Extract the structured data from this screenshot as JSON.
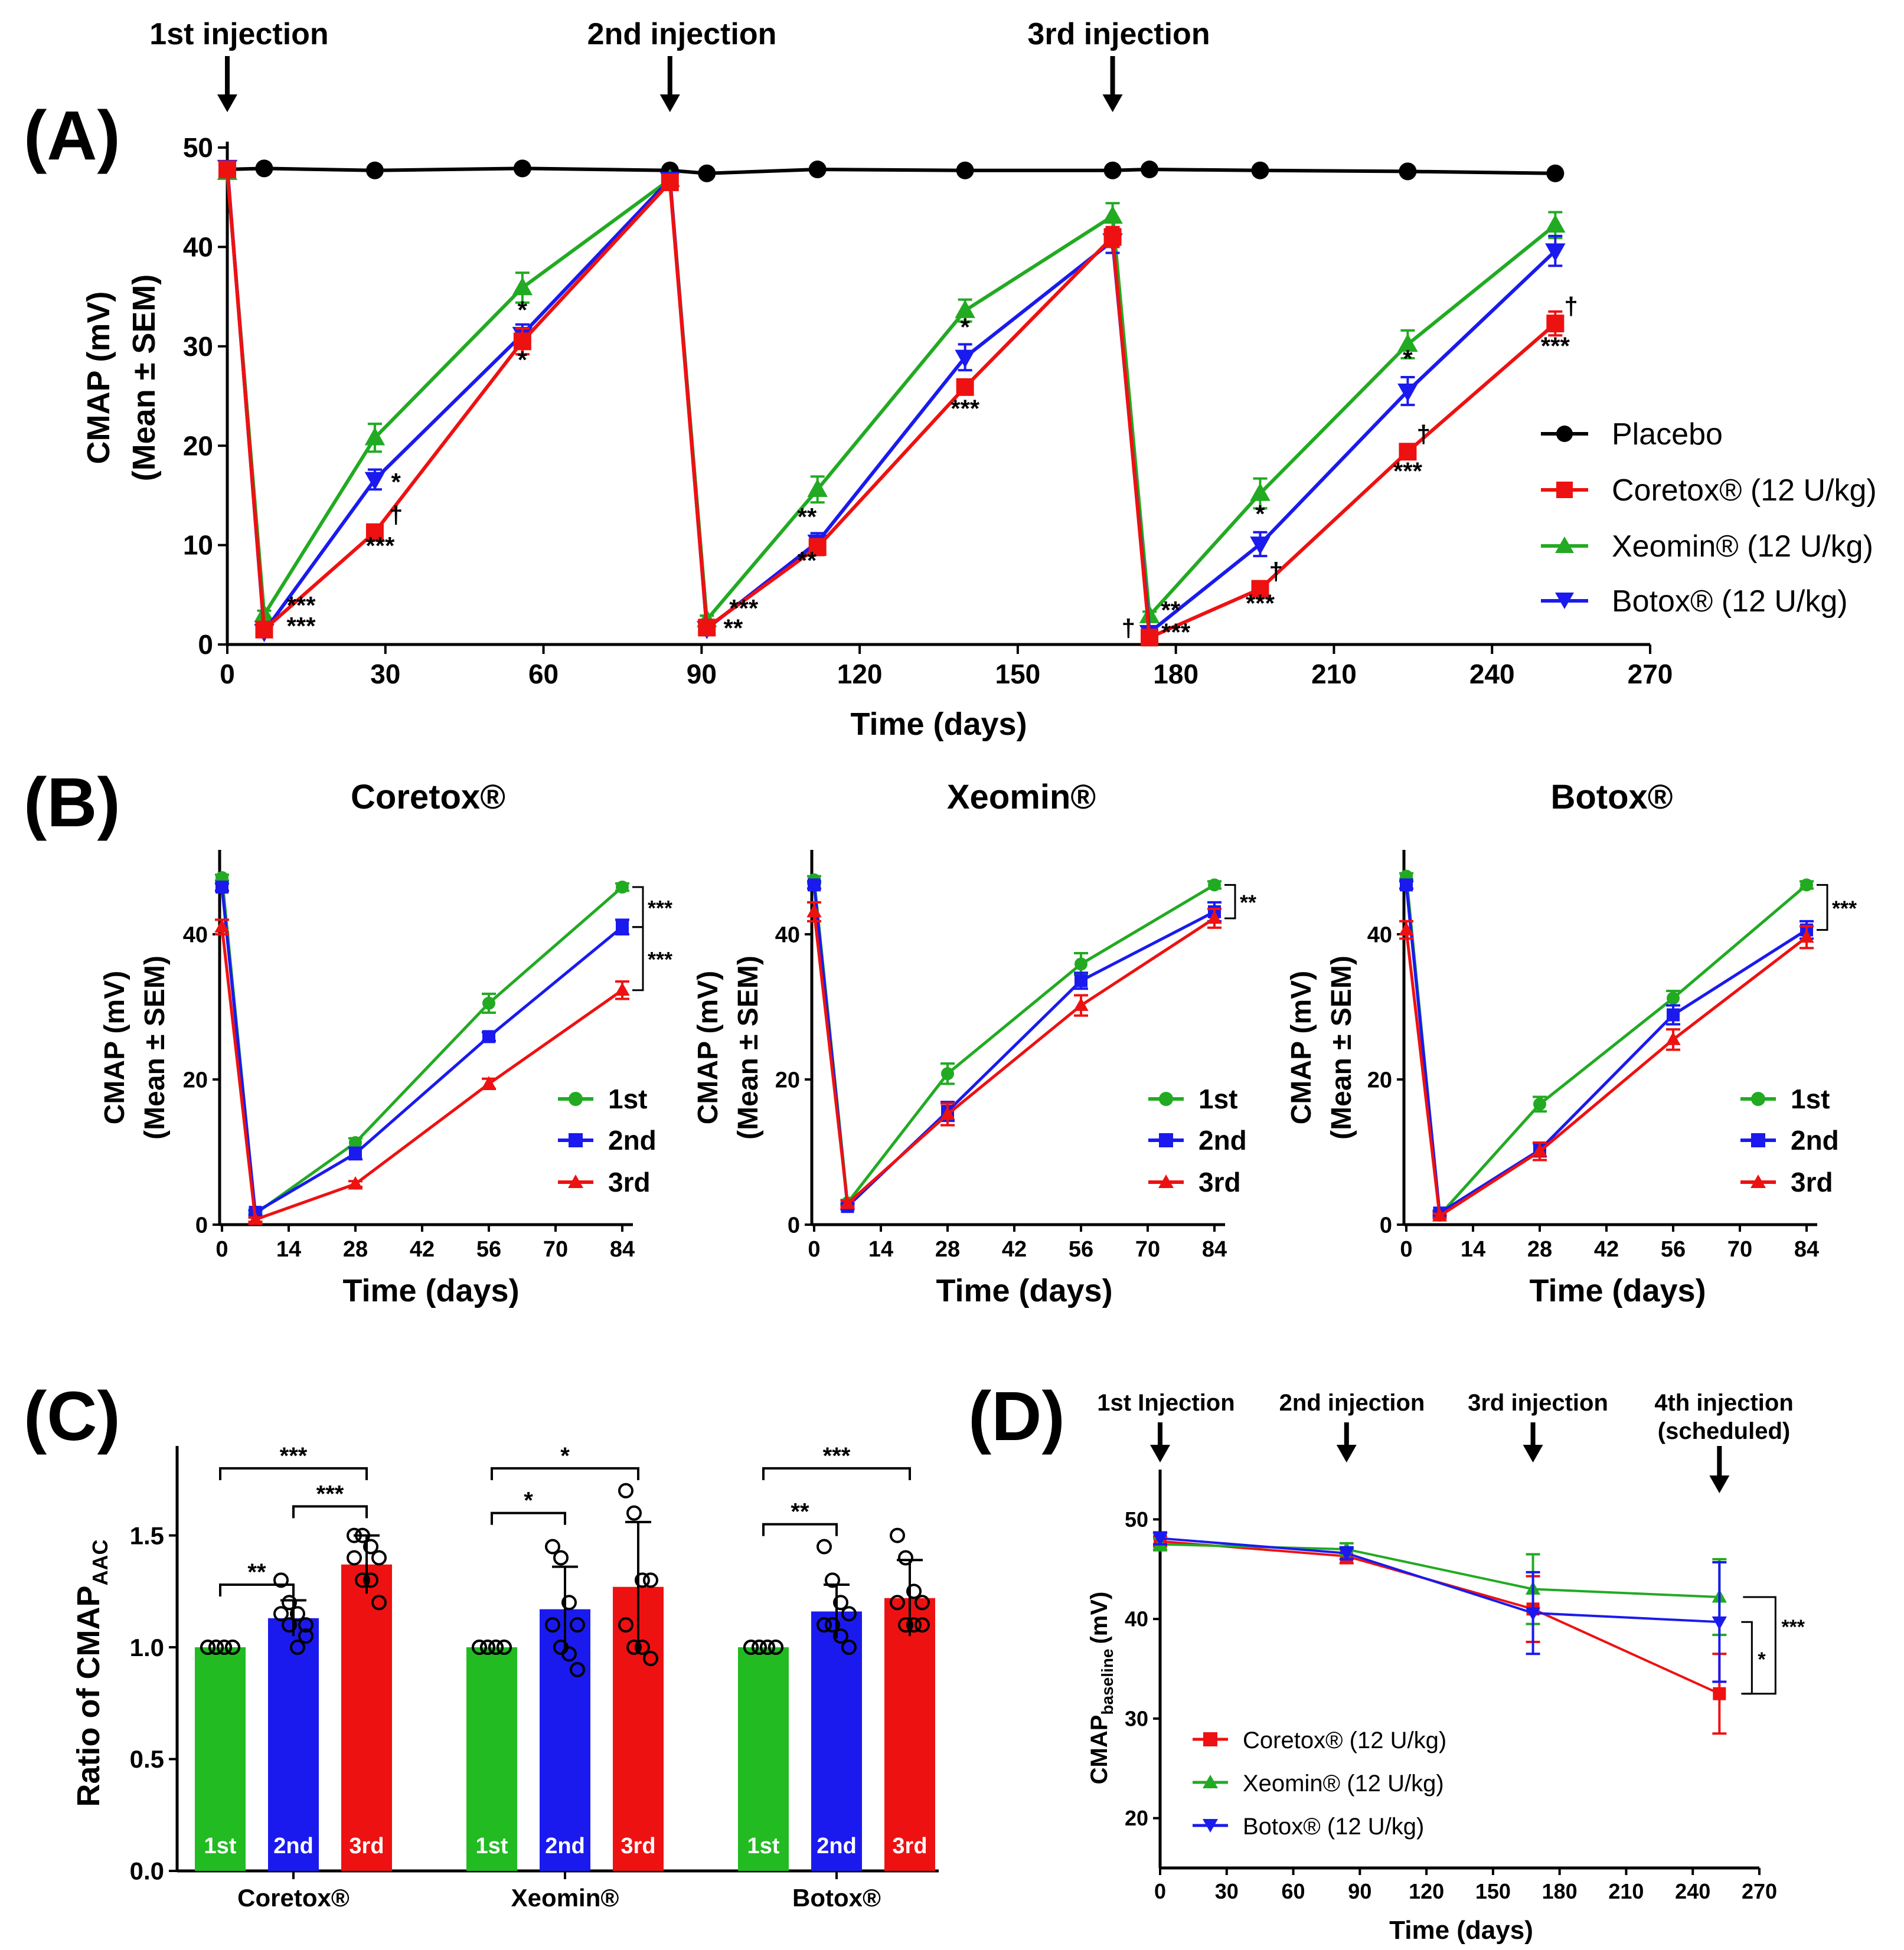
{
  "chart_data": [
    {
      "panel": "(A)",
      "type": "line",
      "xlabel": "Time (days)",
      "ylabel_line1": "CMAP (mV)",
      "ylabel_line2": "(Mean ± SEM)",
      "xlim": [
        0,
        270
      ],
      "ylim": [
        0,
        50
      ],
      "xticks": [
        0,
        30,
        60,
        90,
        120,
        150,
        180,
        210,
        240,
        270
      ],
      "yticks": [
        0,
        10,
        20,
        30,
        40,
        50
      ],
      "annotations": [
        "1st injection",
        "2nd injection",
        "3rd injection"
      ],
      "annotation_days": [
        0,
        84,
        168
      ],
      "series": [
        {
          "name": "Placebo",
          "color": "#000000",
          "marker": "circle",
          "x": [
            0,
            7,
            28,
            56,
            84,
            91,
            112,
            140,
            168,
            175,
            196,
            224,
            252
          ],
          "values": [
            47.8,
            47.9,
            47.7,
            47.9,
            47.7,
            47.4,
            47.8,
            47.7,
            47.7,
            47.8,
            47.7,
            47.6,
            47.4
          ],
          "err": [
            0.3,
            0.3,
            0.3,
            0.3,
            0.3,
            0.3,
            0.3,
            0.3,
            0.3,
            0.3,
            0.3,
            0.3,
            0.3
          ]
        },
        {
          "name": "Xeomin® (12 U/kg)",
          "color": "#22aa22",
          "marker": "triangle",
          "x": [
            0,
            7,
            28,
            56,
            84,
            91,
            112,
            140,
            168,
            175,
            196,
            224,
            252
          ],
          "values": [
            47.5,
            3.0,
            20.8,
            35.9,
            46.8,
            2.5,
            15.6,
            33.6,
            43.1,
            2.9,
            15.2,
            30.2,
            42.2
          ],
          "err": [
            0.5,
            0.4,
            1.4,
            1.5,
            0.5,
            0.4,
            1.3,
            1.1,
            1.3,
            0.4,
            1.5,
            1.4,
            1.3
          ]
        },
        {
          "name": "Botox® (12 U/kg)",
          "color": "#1a1aee",
          "marker": "triangle-down",
          "x": [
            0,
            7,
            28,
            56,
            84,
            91,
            112,
            140,
            168,
            175,
            196,
            224,
            252
          ],
          "values": [
            48.0,
            1.3,
            16.6,
            31.2,
            46.8,
            1.6,
            10.3,
            28.9,
            40.6,
            1.2,
            10.1,
            25.5,
            39.6
          ],
          "err": [
            0.4,
            0.3,
            1.0,
            1.0,
            0.5,
            0.3,
            0.9,
            1.3,
            1.2,
            0.3,
            1.2,
            1.4,
            1.5
          ]
        },
        {
          "name": "Coretox® (12 U/kg)",
          "color": "#ee1111",
          "marker": "square",
          "x": [
            0,
            7,
            28,
            56,
            84,
            91,
            112,
            140,
            168,
            175,
            196,
            224,
            252
          ],
          "values": [
            47.8,
            1.5,
            11.3,
            30.5,
            46.5,
            1.7,
            9.8,
            25.9,
            41.0,
            0.7,
            5.6,
            19.4,
            32.3
          ],
          "err": [
            0.4,
            0.3,
            0.6,
            1.3,
            0.5,
            0.3,
            0.8,
            0.6,
            1.0,
            0.3,
            0.4,
            0.7,
            1.2
          ]
        }
      ],
      "significance": [
        {
          "text": "***",
          "x": 14,
          "y": 3.1
        },
        {
          "text": "***",
          "x": 14,
          "y": 1.0
        },
        {
          "text": "*",
          "x": 32,
          "y": 15.5
        },
        {
          "text": "†",
          "x": 32,
          "y": 12.2
        },
        {
          "text": "***",
          "x": 29,
          "y": 9.1
        },
        {
          "text": "*",
          "x": 56,
          "y": 32.8
        },
        {
          "text": "*",
          "x": 56,
          "y": 27.8
        },
        {
          "text": "***",
          "x": 98,
          "y": 2.8
        },
        {
          "text": "**",
          "x": 96,
          "y": 0.8
        },
        {
          "text": "**",
          "x": 110,
          "y": 12.0
        },
        {
          "text": "**",
          "x": 110,
          "y": 7.6
        },
        {
          "text": "*",
          "x": 140,
          "y": 31.1
        },
        {
          "text": "***",
          "x": 140,
          "y": 22.9
        },
        {
          "text": "**",
          "x": 179,
          "y": 2.6
        },
        {
          "text": "†",
          "x": 171,
          "y": 0.8
        },
        {
          "text": "***",
          "x": 180,
          "y": 0.4
        },
        {
          "text": "*",
          "x": 196,
          "y": 12.3
        },
        {
          "text": "†",
          "x": 199,
          "y": 6.5
        },
        {
          "text": "***",
          "x": 196,
          "y": 3.3
        },
        {
          "text": "*",
          "x": 224,
          "y": 27.9
        },
        {
          "text": "†",
          "x": 227,
          "y": 20.3
        },
        {
          "text": "***",
          "x": 224,
          "y": 16.6
        },
        {
          "text": "†",
          "x": 255,
          "y": 33.2
        },
        {
          "text": "***",
          "x": 252,
          "y": 29.2
        }
      ]
    },
    {
      "panel": "(B)",
      "type": "line",
      "xlabel": "Time (days)",
      "ylabel_line1": "CMAP (mV)",
      "ylabel_line2": "(Mean ± SEM)",
      "xlim": [
        0,
        84
      ],
      "ylim": [
        0,
        50
      ],
      "xticks": [
        0,
        14,
        28,
        42,
        56,
        70,
        84
      ],
      "yticks": [
        0,
        20,
        40
      ],
      "subplots": [
        {
          "title": "Coretox®",
          "x": [
            0,
            7,
            28,
            56,
            84
          ],
          "series": [
            {
              "name": "1st",
              "color": "#22aa22",
              "marker": "circle",
              "values": [
                47.8,
                1.5,
                11.3,
                30.5,
                46.5
              ],
              "err": [
                0.4,
                0.3,
                0.6,
                1.3,
                0.5
              ]
            },
            {
              "name": "2nd",
              "color": "#1a1aee",
              "marker": "square",
              "values": [
                46.5,
                1.7,
                9.8,
                25.9,
                41.0
              ],
              "err": [
                0.5,
                0.3,
                0.8,
                0.6,
                1.0
              ]
            },
            {
              "name": "3rd",
              "color": "#ee1111",
              "marker": "triangle",
              "values": [
                41.0,
                0.7,
                5.6,
                19.4,
                32.3
              ],
              "err": [
                1.0,
                0.3,
                0.4,
                0.7,
                1.2
              ]
            }
          ],
          "sig_brackets": [
            {
              "text": "***",
              "y1": 46.5,
              "y2": 41.0
            },
            {
              "text": "***",
              "y1": 41.0,
              "y2": 32.3
            }
          ]
        },
        {
          "title": "Xeomin®",
          "x": [
            0,
            7,
            28,
            56,
            84
          ],
          "series": [
            {
              "name": "1st",
              "color": "#22aa22",
              "marker": "circle",
              "values": [
                47.5,
                3.0,
                20.8,
                35.9,
                46.8
              ],
              "err": [
                0.5,
                0.4,
                1.4,
                1.5,
                0.5
              ]
            },
            {
              "name": "2nd",
              "color": "#1a1aee",
              "marker": "square",
              "values": [
                46.8,
                2.5,
                15.6,
                33.6,
                43.1
              ],
              "err": [
                0.5,
                0.4,
                1.3,
                1.1,
                1.3
              ]
            },
            {
              "name": "3rd",
              "color": "#ee1111",
              "marker": "triangle",
              "values": [
                43.1,
                2.9,
                15.2,
                30.2,
                42.2
              ],
              "err": [
                1.3,
                0.4,
                1.5,
                1.4,
                1.3
              ]
            }
          ],
          "sig_brackets": [
            {
              "text": "**",
              "y1": 46.8,
              "y2": 42.2
            }
          ]
        },
        {
          "title": "Botox®",
          "x": [
            0,
            7,
            28,
            56,
            84
          ],
          "series": [
            {
              "name": "1st",
              "color": "#22aa22",
              "marker": "circle",
              "values": [
                48.0,
                1.3,
                16.6,
                31.2,
                46.8
              ],
              "err": [
                0.4,
                0.3,
                1.0,
                1.0,
                0.5
              ]
            },
            {
              "name": "2nd",
              "color": "#1a1aee",
              "marker": "square",
              "values": [
                46.8,
                1.6,
                10.3,
                28.9,
                40.6
              ],
              "err": [
                0.5,
                0.3,
                0.9,
                1.3,
                1.2
              ]
            },
            {
              "name": "3rd",
              "color": "#ee1111",
              "marker": "triangle",
              "values": [
                40.6,
                1.2,
                10.1,
                25.5,
                39.6
              ],
              "err": [
                1.2,
                0.3,
                1.2,
                1.4,
                1.5
              ]
            }
          ],
          "sig_brackets": [
            {
              "text": "***",
              "y1": 46.8,
              "y2": 40.6
            }
          ]
        }
      ]
    },
    {
      "panel": "(C)",
      "type": "bar",
      "ylabel_main": "Ratio of CMAP",
      "ylabel_sub": "AAC",
      "ylim": [
        0,
        1.9
      ],
      "yticks": [
        0.0,
        0.5,
        1.0,
        1.5
      ],
      "ytick_labels": [
        "0.0",
        "0.5",
        "1.0",
        "1.5"
      ],
      "groups": [
        "Coretox®",
        "Xeomin®",
        "Botox®"
      ],
      "bar_names": [
        "1st",
        "2nd",
        "3rd"
      ],
      "bar_colors": [
        "#22bb22",
        "#1a1aee",
        "#ee1111"
      ],
      "series": [
        {
          "name": "Coretox®",
          "values": [
            1.0,
            1.13,
            1.37
          ],
          "err": [
            0.0,
            0.08,
            0.13
          ],
          "points": [
            [
              1,
              1,
              1,
              1,
              1,
              1,
              1,
              1
            ],
            [
              1.3,
              1.2,
              1.15,
              1.1,
              1.15,
              1.1,
              1.0,
              1.05
            ],
            [
              1.5,
              1.5,
              1.45,
              1.4,
              1.4,
              1.3,
              1.3,
              1.2
            ]
          ]
        },
        {
          "name": "Xeomin®",
          "values": [
            1.0,
            1.17,
            1.27
          ],
          "err": [
            0.0,
            0.19,
            0.29
          ],
          "points": [
            [
              1,
              1,
              1,
              1,
              1,
              1,
              1,
              1
            ],
            [
              1.45,
              1.4,
              1.2,
              1.1,
              1.1,
              1.0,
              0.97,
              0.9
            ],
            [
              1.7,
              1.6,
              1.3,
              1.3,
              1.1,
              1.0,
              1.0,
              0.95
            ]
          ]
        },
        {
          "name": "Botox®",
          "values": [
            1.0,
            1.16,
            1.22
          ],
          "err": [
            0.0,
            0.12,
            0.17
          ],
          "points": [
            [
              1,
              1,
              1,
              1,
              1,
              1,
              1,
              1
            ],
            [
              1.45,
              1.3,
              1.2,
              1.15,
              1.1,
              1.1,
              1.05,
              1.0
            ],
            [
              1.5,
              1.4,
              1.25,
              1.2,
              1.2,
              1.1,
              1.1,
              1.1
            ]
          ]
        }
      ],
      "sig_brackets": [
        {
          "group": 0,
          "from": 0,
          "to": 1,
          "text": "**",
          "y": 1.28
        },
        {
          "group": 0,
          "from": 1,
          "to": 2,
          "text": "***",
          "y": 1.63
        },
        {
          "group": 0,
          "from": 0,
          "to": 2,
          "text": "***",
          "y": 1.8
        },
        {
          "group": 1,
          "from": 0,
          "to": 1,
          "text": "*",
          "y": 1.6
        },
        {
          "group": 1,
          "from": 0,
          "to": 2,
          "text": "*",
          "y": 1.8
        },
        {
          "group": 2,
          "from": 0,
          "to": 1,
          "text": "**",
          "y": 1.55
        },
        {
          "group": 2,
          "from": 0,
          "to": 2,
          "text": "***",
          "y": 1.8
        }
      ]
    },
    {
      "panel": "(D)",
      "type": "line",
      "xlabel": "Time (days)",
      "ylabel_main": "CMAP",
      "ylabel_sub": "baseline",
      "ylabel_unit": "(mV)",
      "xlim": [
        0,
        270
      ],
      "ylim": [
        15,
        55
      ],
      "xticks": [
        0,
        30,
        60,
        90,
        120,
        150,
        180,
        210,
        240,
        270
      ],
      "yticks": [
        20,
        30,
        40,
        50
      ],
      "annotations": [
        "1st Injection",
        "2nd injection",
        "3rd injection",
        "4th injection",
        "(scheduled)"
      ],
      "annotation_days": [
        0,
        84,
        168,
        252
      ],
      "series": [
        {
          "name": "Coretox® (12 U/kg)",
          "color": "#ee1111",
          "marker": "square",
          "x": [
            0,
            84,
            168,
            252
          ],
          "values": [
            47.8,
            46.3,
            41.0,
            32.5
          ],
          "err": [
            0.5,
            0.7,
            3.3,
            4.0
          ]
        },
        {
          "name": "Xeomin® (12 U/kg)",
          "color": "#22aa22",
          "marker": "triangle",
          "x": [
            0,
            84,
            168,
            252
          ],
          "values": [
            47.5,
            47.0,
            43.0,
            42.2
          ],
          "err": [
            0.6,
            0.6,
            3.5,
            3.8
          ]
        },
        {
          "name": "Botox® (12 U/kg)",
          "color": "#1a1aee",
          "marker": "triangle-down",
          "x": [
            0,
            84,
            168,
            252
          ],
          "values": [
            48.1,
            46.6,
            40.6,
            39.7
          ],
          "err": [
            0.6,
            0.6,
            4.1,
            6.0
          ]
        }
      ],
      "sig_brackets": [
        {
          "text": "*",
          "y1": 39.7,
          "y2": 32.5
        },
        {
          "text": "***",
          "y1": 42.2,
          "y2": 32.5
        }
      ]
    }
  ]
}
